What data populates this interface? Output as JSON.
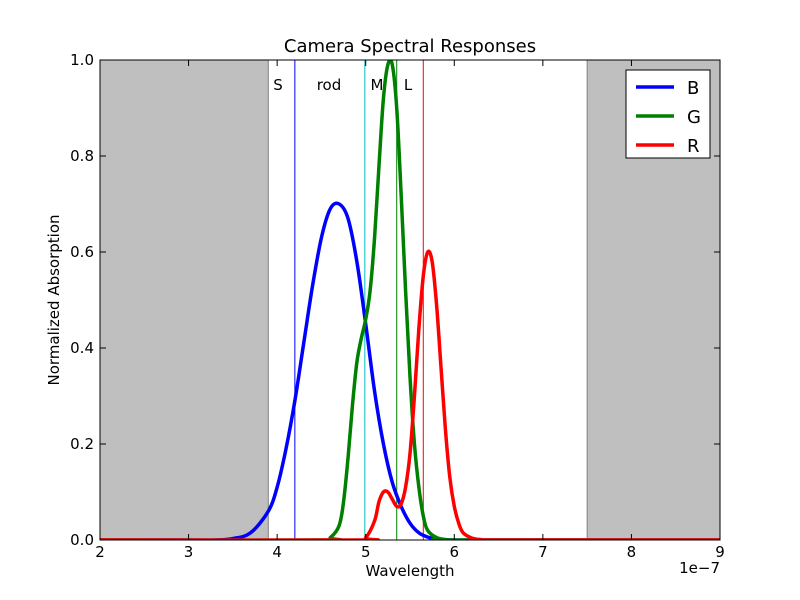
{
  "chart_data": {
    "type": "line",
    "title": "Camera Spectral Responses",
    "xlabel": "Wavelength",
    "ylabel": "Normalized Absorption",
    "x_offset_label": "1e−7",
    "xlim": [
      2,
      9
    ],
    "ylim": [
      0,
      1.0
    ],
    "x_scale_factor": "1e-7",
    "xticks": [
      2,
      3,
      4,
      5,
      6,
      7,
      8,
      9
    ],
    "yticks": [
      0.0,
      0.2,
      0.4,
      0.6,
      0.8,
      1.0
    ],
    "xtick_labels": [
      "2",
      "3",
      "4",
      "5",
      "6",
      "7",
      "8",
      "9"
    ],
    "ytick_labels": [
      "0.0",
      "0.2",
      "0.4",
      "0.6",
      "0.8",
      "1.0"
    ],
    "grid": false,
    "legend_position": "top-right",
    "shaded_regions": [
      {
        "x": [
          2,
          3.9
        ],
        "color": "#bfbfbf"
      },
      {
        "x": [
          7.5,
          9
        ],
        "color": "#bfbfbf"
      }
    ],
    "vertical_lines": [
      {
        "label": "S",
        "x": 4.2,
        "color": "#0000ff"
      },
      {
        "label": "rod",
        "x": 4.99,
        "color": "#00bfbf"
      },
      {
        "label": "M",
        "x": 5.35,
        "color": "#008000"
      },
      {
        "label": "L",
        "x": 5.65,
        "color": "#ff0000"
      }
    ],
    "series": [
      {
        "name": "B",
        "color": "#0000ff",
        "x": [
          2.0,
          3.0,
          3.3,
          3.5,
          3.7,
          3.9,
          4.0,
          4.1,
          4.2,
          4.3,
          4.4,
          4.5,
          4.6,
          4.7,
          4.8,
          4.9,
          5.0,
          5.1,
          5.2,
          5.3,
          5.4,
          5.5,
          5.6,
          5.7,
          5.8,
          6.0,
          6.5,
          9.0
        ],
        "values": [
          0.0,
          0.0,
          0.0,
          0.003,
          0.015,
          0.06,
          0.11,
          0.19,
          0.29,
          0.41,
          0.53,
          0.63,
          0.69,
          0.7,
          0.67,
          0.58,
          0.45,
          0.31,
          0.2,
          0.12,
          0.07,
          0.035,
          0.015,
          0.006,
          0.002,
          0.0,
          0.0,
          0.0
        ]
      },
      {
        "name": "G",
        "color": "#008000",
        "x": [
          2.0,
          4.5,
          4.6,
          4.7,
          4.75,
          4.8,
          4.85,
          4.9,
          4.95,
          5.0,
          5.05,
          5.1,
          5.15,
          5.2,
          5.25,
          5.3,
          5.35,
          5.4,
          5.45,
          5.5,
          5.55,
          5.6,
          5.65,
          5.7,
          5.8,
          5.9,
          6.0,
          9.0
        ],
        "values": [
          0.0,
          0.0,
          0.005,
          0.03,
          0.08,
          0.17,
          0.28,
          0.37,
          0.42,
          0.46,
          0.52,
          0.63,
          0.78,
          0.92,
          0.99,
          0.99,
          0.9,
          0.72,
          0.52,
          0.34,
          0.2,
          0.11,
          0.05,
          0.02,
          0.005,
          0.001,
          0.0,
          0.0
        ]
      },
      {
        "name": "R",
        "color": "#ff0000",
        "x": [
          2.0,
          4.9,
          5.0,
          5.1,
          5.15,
          5.2,
          5.25,
          5.3,
          5.35,
          5.4,
          5.45,
          5.5,
          5.55,
          5.6,
          5.65,
          5.7,
          5.75,
          5.8,
          5.85,
          5.9,
          5.95,
          6.0,
          6.05,
          6.1,
          6.2,
          6.3,
          6.4,
          9.0
        ],
        "values": [
          0.0,
          0.0,
          0.005,
          0.04,
          0.08,
          0.1,
          0.1,
          0.085,
          0.07,
          0.075,
          0.11,
          0.18,
          0.3,
          0.44,
          0.55,
          0.6,
          0.58,
          0.49,
          0.36,
          0.23,
          0.13,
          0.07,
          0.035,
          0.015,
          0.004,
          0.001,
          0.0,
          0.0
        ]
      }
    ]
  }
}
